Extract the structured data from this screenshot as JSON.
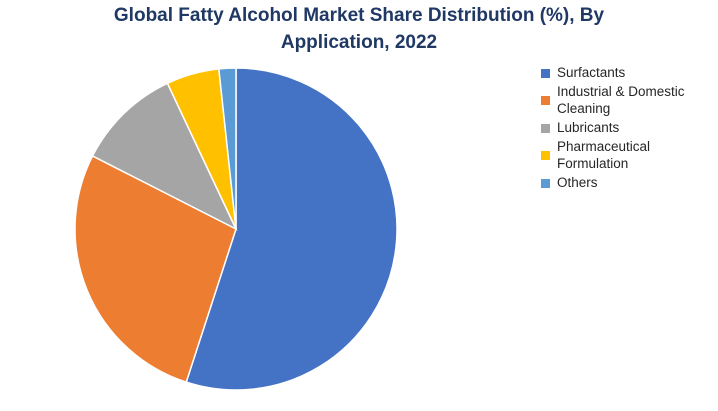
{
  "chart_data": {
    "type": "pie",
    "title_line1": "Global Fatty Alcohol Market Share Distribution (%), By",
    "title_line2": "Application, 2022",
    "categories": [
      "Surfactants",
      "Industrial & Domestic Cleaning",
      "Lubricants",
      "Pharmaceutical Formulation",
      "Others"
    ],
    "legend_lines": [
      [
        "Surfactants"
      ],
      [
        "Industrial & Domestic",
        "Cleaning"
      ],
      [
        "Lubricants"
      ],
      [
        "Pharmaceutical",
        "Formulation"
      ],
      [
        "Others"
      ]
    ],
    "values": [
      55,
      27.5,
      10.5,
      5.3,
      1.7
    ],
    "colors": [
      "#4472C4",
      "#ED7D31",
      "#A5A5A5",
      "#FFC000",
      "#5B9BD5"
    ],
    "legend_position": "right",
    "start_angle": "12 o'clock",
    "direction": "clockwise"
  }
}
